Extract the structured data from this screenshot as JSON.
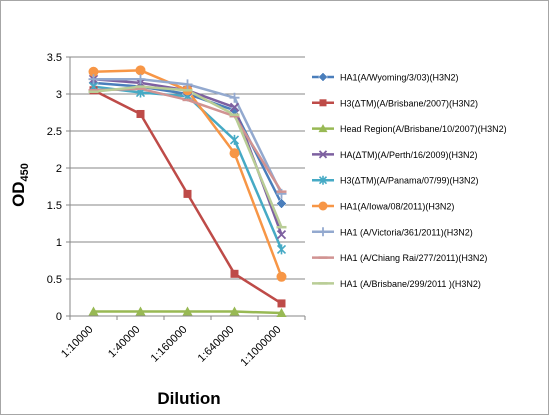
{
  "chart_data": {
    "type": "line",
    "categories": [
      "1:10000",
      "1:40000",
      "1:160000",
      "1:640000",
      "1:1000000"
    ],
    "xlabel": "Dilution",
    "ylabel_main": "OD",
    "ylabel_sub": "450",
    "ylim": [
      0,
      3.5
    ],
    "yticks": [
      "0",
      "0.5",
      "1",
      "1.5",
      "2",
      "2.5",
      "3",
      "3.5"
    ],
    "grid": "horizontal",
    "legend": "right",
    "series": [
      {
        "name": "HA1(A/Wyoming/3/03)(H3N2)",
        "color": "#4a7ebb",
        "marker": "diamond",
        "values": [
          3.15,
          3.1,
          3.0,
          2.78,
          1.52
        ]
      },
      {
        "name": "H3(ΔTM)(A/Brisbane/2007)(H3N2)",
        "color": "#be4b48",
        "marker": "square",
        "values": [
          3.05,
          2.73,
          1.65,
          0.57,
          0.17
        ]
      },
      {
        "name": "Head Region(A/Brisbane/10/2007)(H3N2)",
        "color": "#98b954",
        "marker": "triangle",
        "values": [
          0.06,
          0.06,
          0.06,
          0.06,
          0.04
        ]
      },
      {
        "name": "HA(ΔTM)(A/Perth/16/2009)(H3N2)",
        "color": "#7d60a0",
        "marker": "x",
        "values": [
          3.2,
          3.15,
          3.05,
          2.82,
          1.1
        ]
      },
      {
        "name": "H3(ΔTM)(A/Panama/07/99)(H3N2)",
        "color": "#46aac5",
        "marker": "star",
        "values": [
          3.1,
          3.02,
          2.97,
          2.38,
          0.9
        ]
      },
      {
        "name": "HA1(A/Iowa/08/2011)(H3N2)",
        "color": "#f79646",
        "marker": "circle",
        "values": [
          3.3,
          3.32,
          3.05,
          2.2,
          0.53
        ]
      },
      {
        "name": "HA1 (A/Victoria/361/2011)(H3N2)",
        "color": "#93a9cf",
        "marker": "plus",
        "values": [
          3.2,
          3.2,
          3.13,
          2.95,
          1.65
        ]
      },
      {
        "name": "HA1 (A/Chiang Rai/277/2011)(H3N2)",
        "color": "#d19392",
        "marker": "dash",
        "values": [
          3.05,
          3.07,
          2.92,
          2.7,
          1.68
        ]
      },
      {
        "name": "HA1 (A/Brisbane/299/2011 )(H3N2)",
        "color": "#b9cd96",
        "marker": "dash",
        "values": [
          3.03,
          3.1,
          3.05,
          2.72,
          1.2
        ]
      }
    ]
  }
}
